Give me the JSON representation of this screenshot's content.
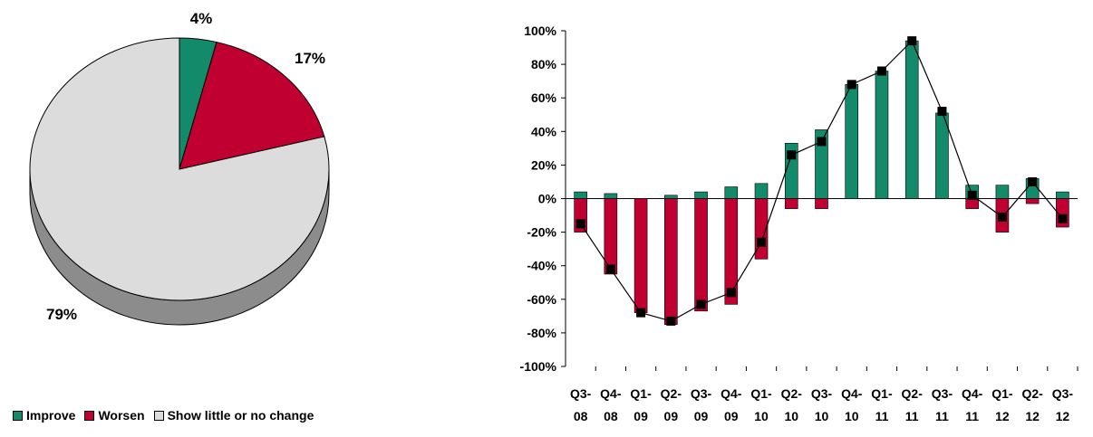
{
  "colors": {
    "improve": "#138a6a",
    "worsen": "#bf0030",
    "nochange": "#dcdcdc",
    "nochange_side": "#8c8c8c",
    "line": "#000000"
  },
  "legend": {
    "items": [
      {
        "label": "Improve",
        "color": "#138a6a"
      },
      {
        "label": "Worsen",
        "color": "#bf0030"
      },
      {
        "label": "Show little or no change",
        "color": "#dcdcdc"
      }
    ]
  },
  "chart_data": [
    {
      "type": "pie",
      "title": "",
      "slices": [
        {
          "name": "Improve",
          "value": 4,
          "label": "4%"
        },
        {
          "name": "Worsen",
          "value": 17,
          "label": "17%"
        },
        {
          "name": "Show little or no change",
          "value": 79,
          "label": "79%"
        }
      ]
    },
    {
      "type": "bar",
      "title": "",
      "xlabel": "",
      "ylabel": "",
      "ylim": [
        -100,
        100
      ],
      "yticks": [
        "100%",
        "80%",
        "60%",
        "40%",
        "20%",
        "0%",
        "-20%",
        "-40%",
        "-60%",
        "-80%",
        "-100%"
      ],
      "categories": [
        [
          "Q3-",
          "08"
        ],
        [
          "Q4-",
          "08"
        ],
        [
          "Q1-",
          "09"
        ],
        [
          "Q2-",
          "09"
        ],
        [
          "Q3-",
          "09"
        ],
        [
          "Q4-",
          "09"
        ],
        [
          "Q1-",
          "10"
        ],
        [
          "Q2-",
          "10"
        ],
        [
          "Q3-",
          "10"
        ],
        [
          "Q4-",
          "10"
        ],
        [
          "Q1-",
          "11"
        ],
        [
          "Q2-",
          "11"
        ],
        [
          "Q3-",
          "11"
        ],
        [
          "Q4-",
          "11"
        ],
        [
          "Q1-",
          "12"
        ],
        [
          "Q2-",
          "12"
        ],
        [
          "Q3-",
          "12"
        ]
      ],
      "series": [
        {
          "name": "Improve",
          "type": "bar",
          "values": [
            4,
            3,
            0,
            2,
            4,
            7,
            9,
            33,
            41,
            68,
            76,
            94,
            51,
            8,
            8,
            12,
            4
          ]
        },
        {
          "name": "Worsen",
          "type": "bar",
          "values": [
            -20,
            -45,
            -68,
            -75,
            -67,
            -63,
            -36,
            -6,
            -6,
            0,
            0,
            0,
            0,
            -6,
            -20,
            -3,
            -17
          ]
        },
        {
          "name": "",
          "type": "line",
          "values": [
            -15,
            -42,
            -68,
            -73,
            -63,
            -56,
            -26,
            26,
            34,
            68,
            76,
            94,
            52,
            2,
            -11,
            10,
            -12
          ]
        }
      ],
      "grid": false,
      "legend": "none"
    }
  ]
}
